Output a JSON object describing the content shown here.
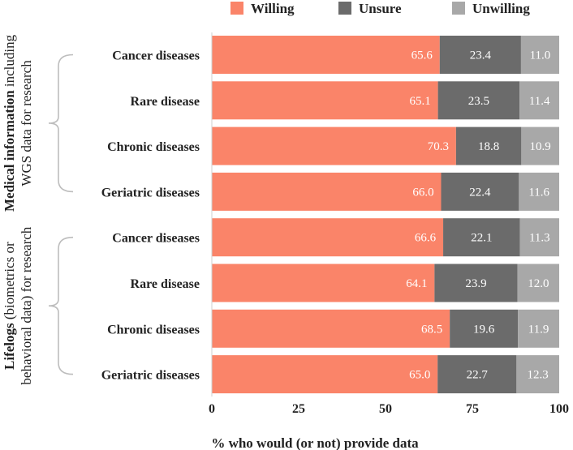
{
  "chart_data": {
    "type": "bar",
    "stacked": true,
    "orientation": "horizontal",
    "xlabel": "% who would (or not) provide data",
    "xlim": [
      0,
      100
    ],
    "xticks": [
      0,
      25,
      50,
      75,
      100
    ],
    "legend": [
      "Willing",
      "Unsure",
      "Unwilling"
    ],
    "legend_position": "top",
    "colors": {
      "Willing": "#fa8469",
      "Unsure": "#6b6b6b",
      "Unwilling": "#a8a8a8"
    },
    "groups": [
      {
        "label_bold": "Medical information",
        "label_rest_1": " including",
        "label_line2": "WGS data for research",
        "categories": [
          "Cancer diseases",
          "Rare disease",
          "Chronic diseases",
          "Geriatric diseases"
        ],
        "series": [
          {
            "name": "Willing",
            "values": [
              65.6,
              65.1,
              70.3,
              66.0
            ]
          },
          {
            "name": "Unsure",
            "values": [
              23.4,
              23.5,
              18.8,
              22.4
            ]
          },
          {
            "name": "Unwilling",
            "values": [
              11.0,
              11.4,
              10.9,
              11.6
            ]
          }
        ]
      },
      {
        "label_bold": "Lifelogs",
        "label_rest_1": " (biometrics or",
        "label_line2": "behavioral data) for research",
        "categories": [
          "Cancer diseases",
          "Rare disease",
          "Chronic diseases",
          "Geriatric diseases"
        ],
        "series": [
          {
            "name": "Willing",
            "values": [
              66.6,
              64.1,
              68.5,
              65.0
            ]
          },
          {
            "name": "Unsure",
            "values": [
              22.1,
              23.9,
              19.6,
              22.7
            ]
          },
          {
            "name": "Unwilling",
            "values": [
              11.3,
              12.0,
              11.9,
              12.3
            ]
          }
        ]
      }
    ]
  }
}
